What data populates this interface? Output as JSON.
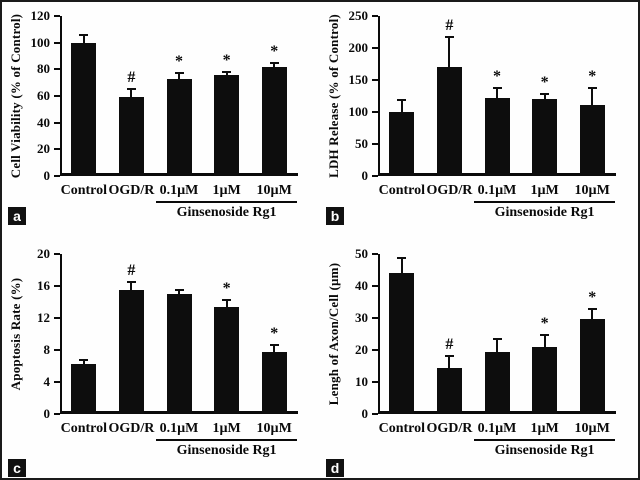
{
  "figure": {
    "background": "#fefefe",
    "border_color": "#1a1a1a",
    "bar_color": "#0d0d0d",
    "text_color": "#0a0a0a",
    "panel_letter_bg": "#111111",
    "panel_letter_color": "#ffffff"
  },
  "chart_data": [
    {
      "panel_letter": "a",
      "type": "bar",
      "title": "",
      "xlabel": "",
      "ylabel": "Cell Viability (% of Control)",
      "categories": [
        "Control",
        "OGD/R",
        "0.1µM",
        "1µM",
        "10µM"
      ],
      "values": [
        100,
        59,
        73,
        76,
        82
      ],
      "errors": [
        6,
        6,
        4,
        2,
        2.5
      ],
      "sig_markers": [
        "",
        "#",
        "*",
        "*",
        "*"
      ],
      "ylim": [
        0,
        120
      ],
      "yticks": [
        0,
        20,
        40,
        60,
        80,
        100,
        120
      ],
      "group_label": "Ginsenoside Rg1",
      "group_span": [
        2,
        4
      ],
      "grid": false,
      "legend": "none"
    },
    {
      "panel_letter": "b",
      "type": "bar",
      "title": "",
      "xlabel": "",
      "ylabel": "LDH Release (% of Control)",
      "categories": [
        "Control",
        "OGD/R",
        "0.1µM",
        "1µM",
        "10µM"
      ],
      "values": [
        100,
        170,
        122,
        120,
        111
      ],
      "errors": [
        18,
        47,
        15,
        8,
        26
      ],
      "sig_markers": [
        "",
        "#",
        "*",
        "*",
        "*"
      ],
      "ylim": [
        0,
        250
      ],
      "yticks": [
        0,
        50,
        100,
        150,
        200,
        250
      ],
      "group_label": "Ginsenoside Rg1",
      "group_span": [
        2,
        4
      ],
      "grid": false,
      "legend": "none"
    },
    {
      "panel_letter": "c",
      "type": "bar",
      "title": "",
      "xlabel": "",
      "ylabel": "Apoptosis Rate  (%)",
      "categories": [
        "Control",
        "OGD/R",
        "0.1µM",
        "1µM",
        "10µM"
      ],
      "values": [
        6.2,
        15.5,
        15,
        13.4,
        7.7
      ],
      "errors": [
        0.5,
        1,
        0.5,
        0.8,
        0.9
      ],
      "sig_markers": [
        "",
        "#",
        "",
        "*",
        "*"
      ],
      "ylim": [
        0,
        20
      ],
      "yticks": [
        0,
        4,
        8,
        12,
        16,
        20
      ],
      "group_label": "Ginsenoside Rg1",
      "group_span": [
        2,
        4
      ],
      "grid": false,
      "legend": "none"
    },
    {
      "panel_letter": "d",
      "type": "bar",
      "title": "",
      "xlabel": "",
      "ylabel": "Lengh of Axon/Cell (µm)",
      "categories": [
        "Control",
        "OGD/R",
        "0.1µM",
        "1µM",
        "10µM"
      ],
      "values": [
        44,
        14.5,
        19.5,
        21,
        29.8
      ],
      "errors": [
        4.7,
        3.5,
        4,
        3.8,
        2.9
      ],
      "sig_markers": [
        "",
        "#",
        "",
        "*",
        "*"
      ],
      "ylim": [
        0,
        50
      ],
      "yticks": [
        0,
        10,
        20,
        30,
        40,
        50
      ],
      "group_label": "Ginsenoside Rg1",
      "group_span": [
        2,
        4
      ],
      "grid": false,
      "legend": "none"
    }
  ]
}
